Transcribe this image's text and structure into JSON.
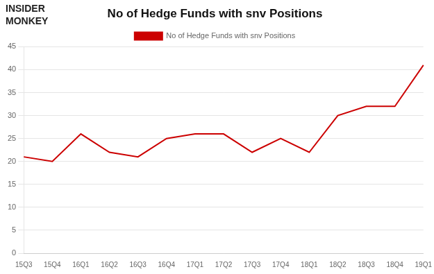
{
  "chart_data": {
    "type": "line",
    "title": "No of Hedge Funds with snv Positions",
    "annotations": [
      "INSIDER",
      "MONKEY"
    ],
    "categories": [
      "15Q3",
      "15Q4",
      "16Q1",
      "16Q2",
      "16Q3",
      "16Q4",
      "17Q1",
      "17Q2",
      "17Q3",
      "17Q4",
      "18Q1",
      "18Q2",
      "18Q3",
      "18Q4",
      "19Q1"
    ],
    "series": [
      {
        "name": "No of Hedge Funds with snv Positions",
        "color": "#cc0000",
        "values": [
          21,
          20,
          26,
          22,
          21,
          25,
          26,
          26,
          22,
          25,
          22,
          30,
          32,
          32,
          41
        ]
      }
    ],
    "ylim": [
      0,
      45
    ],
    "yticks": [
      0,
      5,
      10,
      15,
      20,
      25,
      30,
      35,
      40,
      45
    ],
    "grid": true,
    "legend": "top"
  }
}
